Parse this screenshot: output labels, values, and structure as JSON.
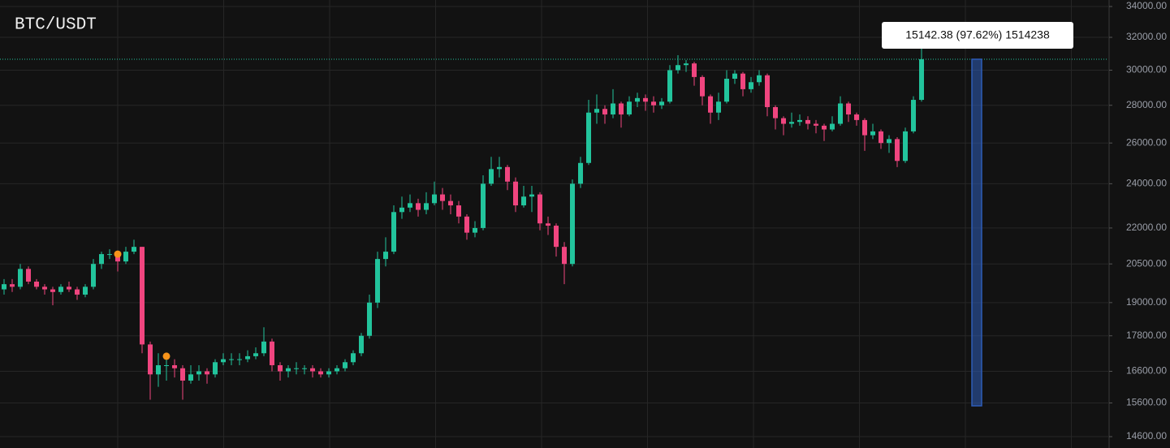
{
  "chart_data": {
    "type": "candlestick",
    "title": "BTC/USDT",
    "log_scale": true,
    "grid": true,
    "up_color": "#22c49c",
    "down_color": "#f0457f",
    "ylim": [
      14600,
      34000
    ],
    "yticks": [
      {
        "value": 14600,
        "label": "14600.00"
      },
      {
        "value": 15600,
        "label": "15600.00"
      },
      {
        "value": 16600,
        "label": "16600.00"
      },
      {
        "value": 17800,
        "label": "17800.00"
      },
      {
        "value": 19000,
        "label": "19000.00"
      },
      {
        "value": 20500,
        "label": "20500.00"
      },
      {
        "value": 22000,
        "label": "22000.00"
      },
      {
        "value": 24000,
        "label": "24000.00"
      },
      {
        "value": 26000,
        "label": "26000.00"
      },
      {
        "value": 28000,
        "label": "28000.00"
      },
      {
        "value": 30000,
        "label": "30000.00"
      },
      {
        "value": 32000,
        "label": "32000.00"
      },
      {
        "value": 34000,
        "label": "34000.00"
      }
    ],
    "open": 19500,
    "close": [
      19700,
      19600,
      20300,
      19800,
      19600,
      19500,
      19400,
      19600,
      19500,
      19300,
      19600,
      20500,
      20900,
      20900,
      20600,
      21000,
      21200,
      17500,
      16500,
      16800,
      16800,
      16700,
      16300,
      16500,
      16600,
      16500,
      16900,
      17000,
      17000,
      17000,
      17100,
      17200,
      17600,
      16800,
      16600,
      16700,
      16700,
      16700,
      16600,
      16500,
      16600,
      16700,
      16900,
      17200,
      17800,
      19000,
      20700,
      21000,
      22700,
      22900,
      23100,
      22800,
      23100,
      23500,
      23200,
      23000,
      22500,
      21800,
      22000,
      24000,
      24700,
      24800,
      24100,
      23000,
      23400,
      23500,
      22200,
      22100,
      21200,
      20500,
      24000,
      25000,
      27600,
      27800,
      27500,
      28100,
      27500,
      28200,
      28400,
      28200,
      28000,
      28200,
      30000,
      30300,
      30400,
      29600,
      28500,
      27600,
      28200,
      29500,
      29800,
      28900,
      29300,
      29700,
      27900,
      27300,
      27000,
      27100,
      27200,
      27000,
      26900,
      26700,
      27000,
      28100,
      27500,
      27200,
      26400,
      26600,
      26000,
      26200,
      25100,
      26600,
      28300,
      30653
    ],
    "high": [
      19900,
      19900,
      20500,
      20400,
      19900,
      19700,
      19600,
      19700,
      19800,
      19600,
      19700,
      20700,
      21000,
      21100,
      21000,
      21200,
      21500,
      21200,
      17600,
      17200,
      17100,
      17000,
      16800,
      16800,
      16800,
      16700,
      17000,
      17200,
      17200,
      17200,
      17300,
      17400,
      18100,
      17700,
      16900,
      16800,
      16900,
      16800,
      16800,
      16700,
      16700,
      16800,
      17000,
      17300,
      17900,
      19300,
      21000,
      21600,
      23000,
      23400,
      23500,
      23300,
      23600,
      24100,
      23800,
      23500,
      23200,
      22600,
      22300,
      24400,
      25300,
      25300,
      24900,
      24300,
      23900,
      23900,
      23600,
      22500,
      22200,
      21400,
      24200,
      25300,
      28300,
      28600,
      28000,
      28900,
      28200,
      28500,
      28700,
      28600,
      28500,
      28400,
      30300,
      30900,
      30600,
      30500,
      29700,
      28600,
      28700,
      30000,
      30000,
      29900,
      29600,
      30000,
      29800,
      28000,
      27400,
      27600,
      27500,
      27400,
      27200,
      27000,
      27400,
      28500,
      28200,
      27600,
      27300,
      27000,
      26700,
      26400,
      26300,
      26800,
      28500,
      31400
    ],
    "low": [
      19300,
      19400,
      19500,
      19700,
      19500,
      19300,
      18900,
      19300,
      19400,
      19100,
      19200,
      19500,
      20300,
      20700,
      20200,
      20500,
      20900,
      17200,
      15700,
      16100,
      16300,
      16400,
      15700,
      16200,
      16300,
      16200,
      16400,
      16800,
      16800,
      16800,
      16900,
      17000,
      17100,
      16600,
      16300,
      16400,
      16500,
      16500,
      16400,
      16400,
      16400,
      16500,
      16600,
      16800,
      17100,
      17700,
      18800,
      20400,
      20900,
      22400,
      22700,
      22500,
      22600,
      23000,
      22800,
      22600,
      22200,
      21500,
      21600,
      21900,
      23900,
      24300,
      23700,
      22700,
      22900,
      22700,
      21900,
      21700,
      20800,
      19700,
      20400,
      23800,
      24900,
      27000,
      27000,
      27300,
      26800,
      27400,
      27900,
      27700,
      27600,
      27800,
      28100,
      29800,
      29900,
      29100,
      28000,
      27000,
      27200,
      28100,
      29200,
      28500,
      28700,
      29100,
      27400,
      26700,
      26400,
      26800,
      26900,
      26700,
      26500,
      26100,
      26600,
      26900,
      27100,
      26900,
      25600,
      26200,
      25700,
      25500,
      24800,
      25000,
      26500,
      28200
    ],
    "markers": [
      {
        "index": 14,
        "value": 20900,
        "color": "#f7931a"
      },
      {
        "index": 20,
        "value": 17100,
        "color": "#f7931a"
      }
    ],
    "range": {
      "low": 15511,
      "high": 30653,
      "label": "15142.38 (97.62%) 1514238",
      "color": "#2e5cb8"
    }
  }
}
